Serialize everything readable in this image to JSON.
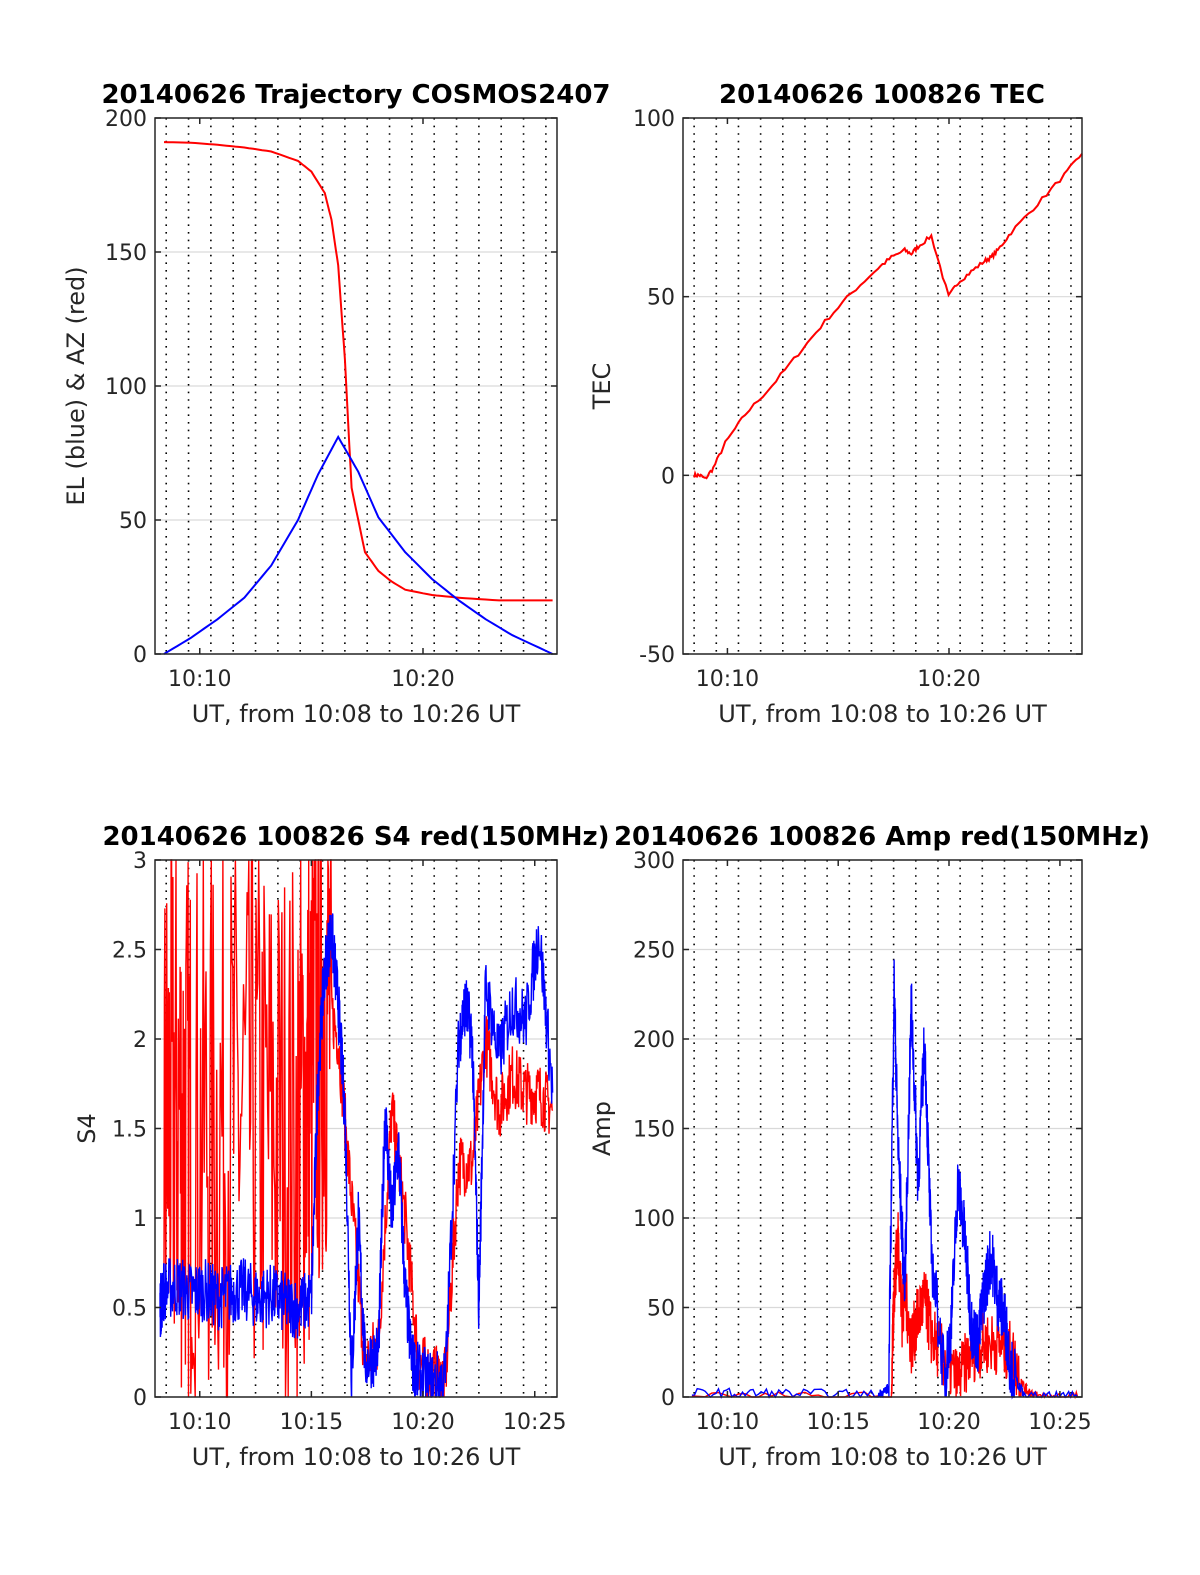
{
  "colors": {
    "red": "#ff0000",
    "blue": "#0000ff",
    "grid": "#d9d9d9",
    "axis": "#262626"
  },
  "chart_data": [
    {
      "type": "line",
      "title": "20140626 Trajectory COSMOS2407",
      "xlabel": "UT, from 10:08 to 10:26 UT",
      "ylabel": "EL (blue) & AZ (red)",
      "xlim": [
        10.1333,
        10.4333
      ],
      "ylim": [
        0,
        200
      ],
      "xticks": [
        {
          "v": 10.1667,
          "label": "10:10"
        },
        {
          "v": 10.3333,
          "label": "10:20"
        }
      ],
      "yticks": [
        {
          "v": 0,
          "label": "0"
        },
        {
          "v": 50,
          "label": "50"
        },
        {
          "v": 100,
          "label": "100"
        },
        {
          "v": 150,
          "label": "150"
        },
        {
          "v": 200,
          "label": "200"
        }
      ],
      "grid": "horizontal major grid, vertical dotted lines",
      "series": [
        {
          "color": "red",
          "x": [
            10.14,
            10.16,
            10.18,
            10.2,
            10.22,
            10.24,
            10.25,
            10.26,
            10.265,
            10.27,
            10.275,
            10.28,
            10.29,
            10.3,
            10.31,
            10.32,
            10.34,
            10.36,
            10.39,
            10.43
          ],
          "y": [
            191,
            190.8,
            190,
            189,
            187.5,
            184,
            180,
            172,
            162,
            145,
            110,
            62,
            38,
            31,
            27,
            24,
            22,
            21,
            20,
            20
          ]
        },
        {
          "color": "blue",
          "x": [
            10.14,
            10.16,
            10.18,
            10.2,
            10.22,
            10.24,
            10.255,
            10.27,
            10.285,
            10.3,
            10.32,
            10.34,
            10.36,
            10.38,
            10.4,
            10.43
          ],
          "y": [
            0,
            6,
            13,
            21,
            33,
            50,
            67,
            81,
            68,
            51,
            38,
            28,
            20,
            13,
            7,
            0
          ]
        }
      ]
    },
    {
      "type": "line",
      "title": "20140626 100826 TEC",
      "xlabel": "UT, from 10:08 to 10:26 UT",
      "ylabel": "TEC",
      "xlim": [
        10.1333,
        10.4333
      ],
      "ylim": [
        -50,
        100
      ],
      "xticks": [
        {
          "v": 10.1667,
          "label": "10:10"
        },
        {
          "v": 10.3333,
          "label": "10:20"
        }
      ],
      "yticks": [
        {
          "v": -50,
          "label": "-50"
        },
        {
          "v": 0,
          "label": "0"
        },
        {
          "v": 50,
          "label": "50"
        },
        {
          "v": 100,
          "label": "100"
        }
      ],
      "grid": "horizontal major grid, vertical dotted lines",
      "series": [
        {
          "color": "red",
          "x": [
            10.1417,
            10.146,
            10.15,
            10.156,
            10.165,
            10.18,
            10.2,
            10.22,
            10.24,
            10.26,
            10.28,
            10.29,
            10.3,
            10.305,
            10.31,
            10.32,
            10.333,
            10.34,
            10.35,
            10.36,
            10.365,
            10.37,
            10.38,
            10.4,
            10.42,
            10.4333
          ],
          "y": [
            0,
            0,
            -1,
            2,
            9,
            17,
            25,
            34,
            43,
            51,
            58,
            61,
            63,
            62,
            64,
            67,
            50,
            54,
            57,
            60,
            61,
            63,
            68,
            76,
            84,
            90
          ]
        }
      ]
    },
    {
      "type": "line",
      "title": "20140626 100826 S4 red(150MHz)",
      "xlabel": "UT, from 10:08 to 10:26 UT",
      "ylabel": "S4",
      "xlim": [
        10.1333,
        10.4333
      ],
      "ylim": [
        0,
        3
      ],
      "xticks": [
        {
          "v": 10.1667,
          "label": "10:10"
        },
        {
          "v": 10.25,
          "label": "10:15"
        },
        {
          "v": 10.3333,
          "label": "10:20"
        },
        {
          "v": 10.4167,
          "label": "10:25"
        }
      ],
      "yticks": [
        {
          "v": 0,
          "label": "0"
        },
        {
          "v": 0.5,
          "label": "0.5"
        },
        {
          "v": 1,
          "label": "1"
        },
        {
          "v": 1.5,
          "label": "1.5"
        },
        {
          "v": 2,
          "label": "2"
        },
        {
          "v": 2.5,
          "label": "2.5"
        },
        {
          "v": 3,
          "label": "3"
        }
      ],
      "grid": "horizontal major grid, vertical dotted lines",
      "series": [
        {
          "color": "red",
          "x": [
            10.14,
            10.15,
            10.16,
            10.18,
            10.2,
            10.22,
            10.24,
            10.25,
            10.26,
            10.27,
            10.28,
            10.29,
            10.3,
            10.31,
            10.32,
            10.33,
            10.34,
            10.35,
            10.36,
            10.37,
            10.38,
            10.39,
            10.4,
            10.41,
            10.42,
            10.43
          ],
          "y": [
            1.5,
            1.6,
            1.5,
            1.5,
            1.6,
            1.5,
            1.5,
            1.8,
            2.3,
            2.0,
            1.1,
            0.2,
            0.3,
            1.6,
            1.0,
            0.2,
            0.12,
            0.1,
            1.3,
            1.3,
            2.0,
            1.6,
            1.8,
            1.7,
            1.7,
            1.6
          ]
        },
        {
          "color": "blue",
          "x": [
            10.137,
            10.14,
            10.15,
            10.16,
            10.17,
            10.18,
            10.19,
            10.2,
            10.21,
            10.22,
            10.23,
            10.24,
            10.25,
            10.255,
            10.26,
            10.265,
            10.27,
            10.275,
            10.28,
            10.285,
            10.29,
            10.3,
            10.305,
            10.31,
            10.315,
            10.32,
            10.325,
            10.33,
            10.34,
            10.35,
            10.36,
            10.365,
            10.37,
            10.375,
            10.38,
            10.39,
            10.4,
            10.41,
            10.42,
            10.43
          ],
          "y": [
            0.5,
            0.6,
            0.62,
            0.58,
            0.6,
            0.55,
            0.58,
            0.6,
            0.55,
            0.57,
            0.52,
            0.5,
            0.55,
            1.8,
            2.4,
            2.6,
            2.2,
            1.6,
            0.1,
            1.0,
            0.2,
            0.25,
            1.6,
            1.0,
            1.4,
            0.6,
            0.2,
            0.12,
            0.08,
            0.1,
            2.0,
            2.2,
            2.0,
            0.5,
            2.3,
            1.9,
            2.2,
            2.1,
            2.6,
            1.7
          ]
        }
      ]
    },
    {
      "type": "line",
      "title": "20140626 100826 Amp red(150MHz)",
      "xlabel": "UT, from 10:08 to 10:26 UT",
      "ylabel": "Amp",
      "xlim": [
        10.1333,
        10.4333
      ],
      "ylim": [
        0,
        300
      ],
      "xticks": [
        {
          "v": 10.1667,
          "label": "10:10"
        },
        {
          "v": 10.25,
          "label": "10:15"
        },
        {
          "v": 10.3333,
          "label": "10:20"
        },
        {
          "v": 10.4167,
          "label": "10:25"
        }
      ],
      "yticks": [
        {
          "v": 0,
          "label": "0"
        },
        {
          "v": 50,
          "label": "50"
        },
        {
          "v": 100,
          "label": "100"
        },
        {
          "v": 150,
          "label": "150"
        },
        {
          "v": 200,
          "label": "200"
        },
        {
          "v": 250,
          "label": "250"
        },
        {
          "v": 300,
          "label": "300"
        }
      ],
      "grid": "horizontal major grid, vertical dotted lines",
      "series": [
        {
          "color": "red",
          "x": [
            10.14,
            10.29,
            10.292,
            10.295,
            10.298,
            10.3,
            10.305,
            10.31,
            10.315,
            10.32,
            10.33,
            10.34,
            10.35,
            10.36,
            10.37,
            10.38,
            10.39,
            10.4,
            10.43
          ],
          "y": [
            0,
            0,
            60,
            90,
            45,
            60,
            30,
            45,
            55,
            35,
            20,
            10,
            25,
            30,
            30,
            25,
            5,
            0,
            0
          ]
        },
        {
          "color": "blue",
          "x": [
            10.14,
            10.2,
            10.28,
            10.288,
            10.292,
            10.295,
            10.3,
            10.305,
            10.31,
            10.315,
            10.32,
            10.33,
            10.335,
            10.34,
            10.345,
            10.35,
            10.355,
            10.36,
            10.365,
            10.37,
            10.375,
            10.38,
            10.39,
            10.43
          ],
          "y": [
            2,
            2,
            1,
            5,
            230,
            140,
            60,
            220,
            120,
            200,
            80,
            10,
            40,
            120,
            90,
            40,
            30,
            60,
            80,
            55,
            45,
            15,
            0,
            0
          ]
        }
      ]
    }
  ]
}
